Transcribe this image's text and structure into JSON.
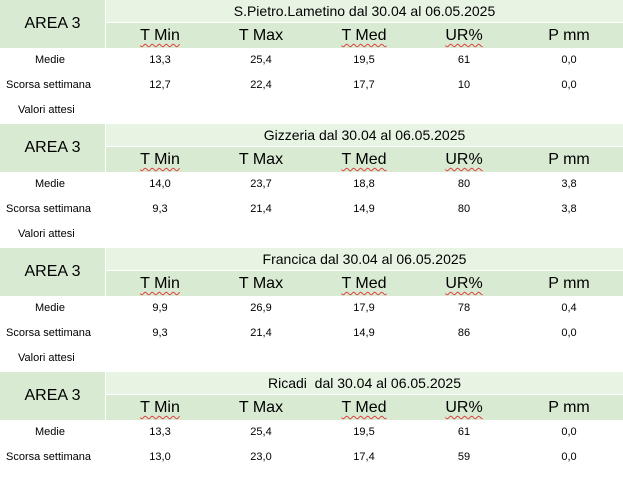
{
  "columns": [
    "T Min",
    "T Max",
    "T Med",
    "UR%",
    "P mm"
  ],
  "row_labels": {
    "medie": "Medie",
    "scorsa": "Scorsa settimana",
    "attesi": "Valori attesi"
  },
  "colors": {
    "header_green": "#d9ead3",
    "title_green": "#e8f4e3",
    "spellcheck_red": "#e04040"
  },
  "blocks": [
    {
      "area": "AREA 3",
      "title": "S.Pietro.Lametino dal 30.04 al 06.05.2025",
      "medie": [
        "13,3",
        "25,4",
        "19,5",
        "61",
        "0,0"
      ],
      "scorsa": [
        "12,7",
        "22,4",
        "17,7",
        "10",
        "0,0"
      ]
    },
    {
      "area": "AREA 3",
      "title": "Gizzeria dal 30.04 al 06.05.2025",
      "medie": [
        "14,0",
        "23,7",
        "18,8",
        "80",
        "3,8"
      ],
      "scorsa": [
        "9,3",
        "21,4",
        "14,9",
        "80",
        "3,8"
      ]
    },
    {
      "area": "AREA 3",
      "title": "Francica dal 30.04 al 06.05.2025",
      "medie": [
        "9,9",
        "26,9",
        "17,9",
        "78",
        "0,4"
      ],
      "scorsa": [
        "9,3",
        "21,4",
        "14,9",
        "86",
        "0,0"
      ]
    },
    {
      "area": "AREA 3",
      "title": "Ricadi  dal 30.04 al 06.05.2025",
      "medie": [
        "13,3",
        "25,4",
        "19,5",
        "61",
        "0,0"
      ],
      "scorsa": [
        "13,0",
        "23,0",
        "17,4",
        "59",
        "0,0"
      ]
    }
  ]
}
